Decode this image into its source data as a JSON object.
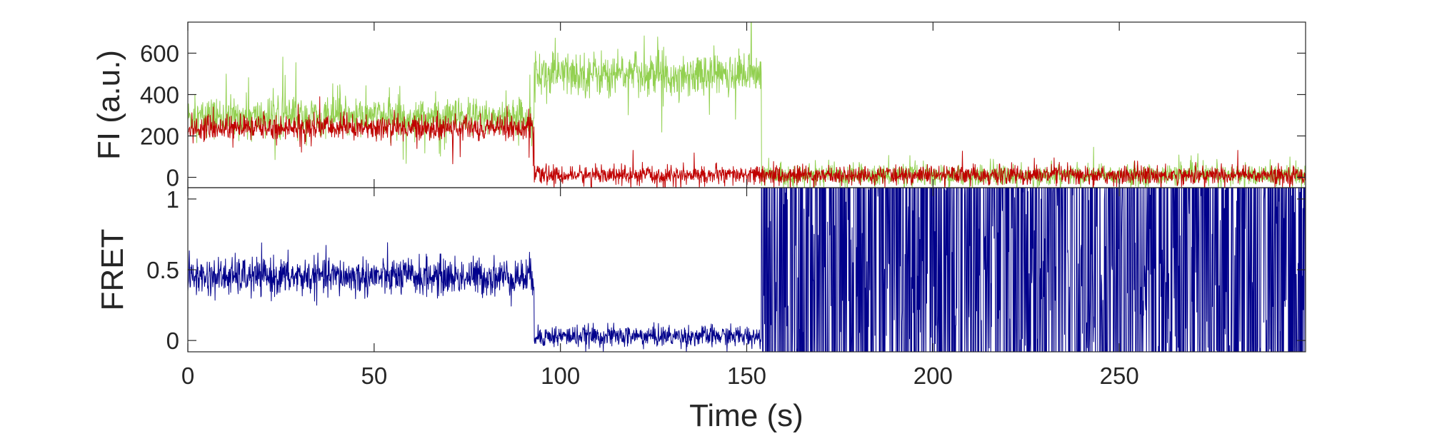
{
  "chart_data": [
    {
      "type": "line",
      "ylabel": "FI (a.u.)",
      "xlabel": "",
      "xlim": [
        0,
        300
      ],
      "ylim": [
        -50,
        750
      ],
      "y_ticks": [
        0,
        200,
        400,
        600
      ],
      "x_ticks": [
        0,
        50,
        100,
        150,
        200,
        250
      ],
      "x_tick_labels_shown": false,
      "grid": false,
      "legend": "none",
      "segments": [
        {
          "t_start": 0,
          "t_end": 93,
          "green_mean": 290,
          "green_noise": 85,
          "red_mean": 240,
          "red_noise": 55
        },
        {
          "t_start": 93,
          "t_end": 154,
          "green_mean": 500,
          "green_noise": 95,
          "red_mean": 10,
          "red_noise": 40
        },
        {
          "t_start": 154,
          "t_end": 300,
          "green_mean": 10,
          "green_noise": 45,
          "red_mean": 10,
          "red_noise": 40
        }
      ],
      "series": [
        {
          "color": "#92d050",
          "mean_levels": [
            290,
            500,
            10
          ]
        },
        {
          "color": "#c00000",
          "mean_levels": [
            240,
            10,
            10
          ]
        }
      ]
    },
    {
      "type": "line",
      "ylabel": "FRET",
      "xlabel": "Time (s)",
      "xlim": [
        0,
        300
      ],
      "ylim": [
        -0.08,
        1.08
      ],
      "y_ticks": [
        0,
        0.5,
        1
      ],
      "y_tick_labels": [
        "0",
        "0.5",
        "1"
      ],
      "x_ticks": [
        0,
        50,
        100,
        150,
        200,
        250
      ],
      "x_tick_labels": [
        "0",
        "50",
        "100",
        "150",
        "200",
        "250"
      ],
      "grid": false,
      "legend": "none",
      "segments": [
        {
          "t_start": 0,
          "t_end": 93,
          "fret_mean": 0.45,
          "fret_noise": 0.09
        },
        {
          "t_start": 93,
          "t_end": 154,
          "fret_mean": 0.03,
          "fret_noise": 0.05
        },
        {
          "t_start": 154,
          "t_end": 300,
          "fret_mean": "noisy, spans full range (after photobleaching)"
        }
      ],
      "series": [
        {
          "color": "#00008b",
          "mean_levels": [
            0.45,
            0.03,
            null
          ]
        }
      ]
    }
  ]
}
